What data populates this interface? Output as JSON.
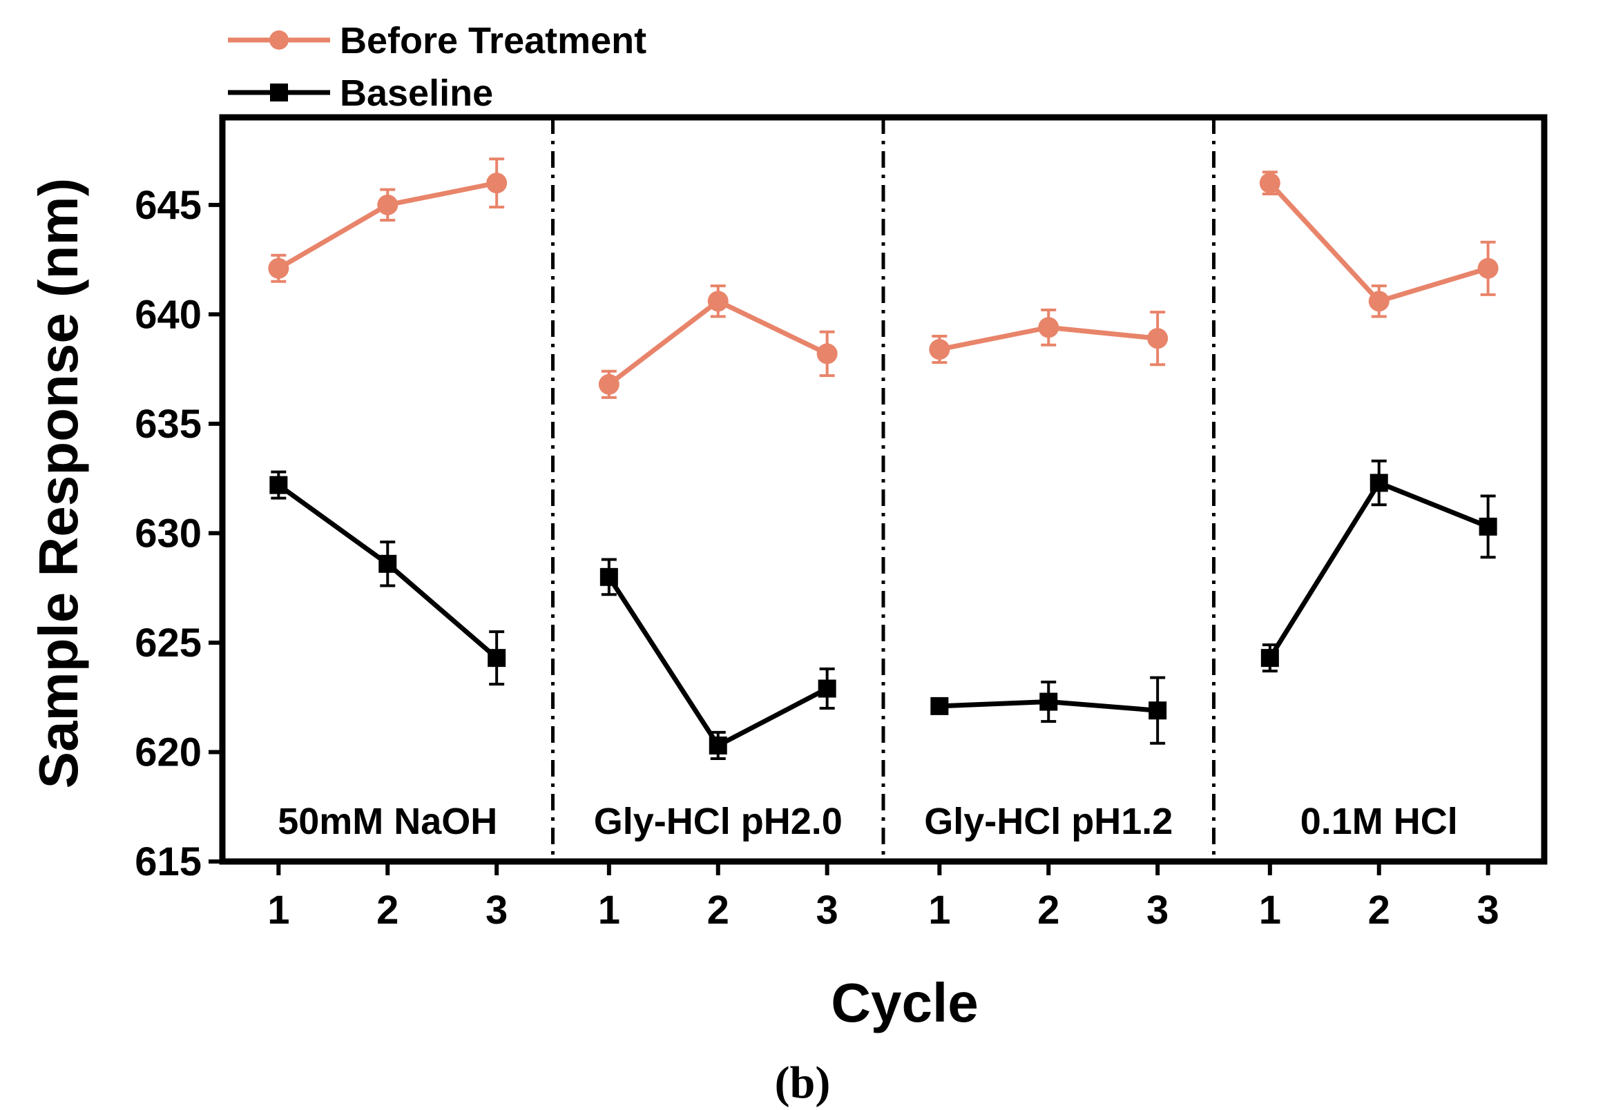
{
  "chart_data": {
    "type": "line",
    "x_tick_labels": [
      "1",
      "2",
      "3"
    ],
    "panels": [
      {
        "label": "50mM NaOH"
      },
      {
        "label": "Gly-HCl pH2.0"
      },
      {
        "label": "Gly-HCl pH1.2"
      },
      {
        "label": "0.1M HCl"
      }
    ],
    "series": [
      {
        "name": "Before Treatment",
        "color": "#e8846a",
        "marker": "circle",
        "values": [
          [
            642.1,
            645.0,
            646.0
          ],
          [
            636.8,
            640.6,
            638.2
          ],
          [
            638.4,
            639.4,
            638.9
          ],
          [
            646.0,
            640.6,
            642.1
          ]
        ],
        "errors": [
          [
            0.6,
            0.7,
            1.1
          ],
          [
            0.6,
            0.7,
            1.0
          ],
          [
            0.6,
            0.8,
            1.2
          ],
          [
            0.5,
            0.7,
            1.2
          ]
        ]
      },
      {
        "name": "Baseline",
        "color": "#000000",
        "marker": "square",
        "values": [
          [
            632.2,
            628.6,
            624.3
          ],
          [
            628.0,
            620.3,
            622.9
          ],
          [
            622.1,
            622.3,
            621.9
          ],
          [
            624.3,
            632.3,
            630.3
          ]
        ],
        "errors": [
          [
            0.6,
            1.0,
            1.2
          ],
          [
            0.8,
            0.6,
            0.9
          ],
          [
            0.3,
            0.9,
            1.5
          ],
          [
            0.6,
            1.0,
            1.4
          ]
        ]
      }
    ],
    "xlabel": "Cycle",
    "ylabel": "Sample Response (nm)",
    "ylim": [
      615,
      649
    ],
    "yticks": [
      615,
      620,
      625,
      630,
      635,
      640,
      645
    ],
    "legend_position": "top-left, above plot",
    "caption": "(b)"
  }
}
